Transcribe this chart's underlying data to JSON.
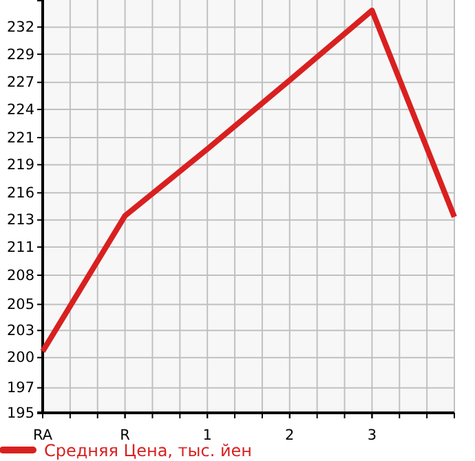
{
  "chart_data": {
    "type": "line",
    "categories": [
      "RA",
      "R",
      "1",
      "2",
      "3",
      null
    ],
    "series": [
      {
        "name": "Средняя Цена, тыс. йен",
        "color": "#d92020",
        "values": [
          200.9,
          213.9,
          220.3,
          226.9,
          233.6,
          213.8
        ]
      }
    ],
    "ylim": [
      195,
      234.6
    ],
    "yticks": [
      195,
      {
        "value": 197.4,
        "label": "197"
      },
      {
        "value": 200.3,
        "label": "200"
      },
      {
        "value": 202.9,
        "label": "203"
      },
      {
        "value": 205.4,
        "label": "205"
      },
      {
        "value": 208.2,
        "label": "208"
      },
      {
        "value": 210.9,
        "label": "211"
      },
      {
        "value": 213.5,
        "label": "213"
      },
      {
        "value": 216.1,
        "label": "216"
      },
      {
        "value": 218.8,
        "label": "219"
      },
      {
        "value": 221.4,
        "label": "221"
      },
      {
        "value": 224.1,
        "label": "224"
      },
      {
        "value": 226.7,
        "label": "227"
      },
      {
        "value": 229.4,
        "label": "229"
      },
      {
        "value": 232,
        "label": "232"
      }
    ],
    "grid": true,
    "legend": "bottom",
    "marker": "none",
    "line_style": "solid"
  }
}
